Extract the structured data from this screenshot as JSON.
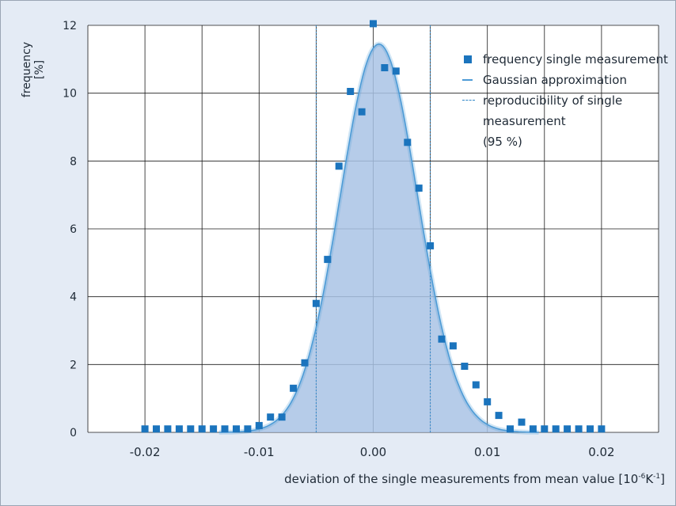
{
  "chart_data": {
    "type": "scatter",
    "xlabel_main": "deviation of the single measurements from mean value [10",
    "xlabel_exp1": "-6",
    "xlabel_unit": "K",
    "xlabel_exp2": "-1",
    "xlabel_end": "]",
    "ylabel": "frequency [%]",
    "xlim": [
      -0.025,
      0.025
    ],
    "ylim": [
      0,
      12
    ],
    "xticks": [
      -0.02,
      -0.01,
      0.0,
      0.01,
      0.02
    ],
    "xtick_labels": [
      "-0.02",
      "-0.01",
      "0.00",
      "0.01",
      "0.02"
    ],
    "yticks": [
      0,
      2,
      4,
      6,
      8,
      10,
      12
    ],
    "ytick_labels": [
      "0",
      "2",
      "4",
      "6",
      "8",
      "10",
      "12"
    ],
    "grid": true,
    "legend_position": "top-right",
    "colors": {
      "marker": "#1b74bd",
      "fill": "#a9c3e5",
      "curve": "#4d9bd6",
      "dashed": "#2f86c7",
      "grid": "#1a1a1a"
    },
    "series": [
      {
        "name": "frequency single measurement",
        "kind": "scatter",
        "x": [
          -0.02,
          -0.019,
          -0.018,
          -0.017,
          -0.016,
          -0.015,
          -0.014,
          -0.013,
          -0.012,
          -0.011,
          -0.01,
          -0.009,
          -0.008,
          -0.007,
          -0.006,
          -0.005,
          -0.004,
          -0.003,
          -0.002,
          -0.001,
          0.0,
          0.001,
          0.002,
          0.003,
          0.004,
          0.005,
          0.006,
          0.007,
          0.008,
          0.009,
          0.01,
          0.011,
          0.012,
          0.013,
          0.014,
          0.015,
          0.016,
          0.017,
          0.018,
          0.019,
          0.02
        ],
        "y": [
          0.1,
          0.1,
          0.1,
          0.1,
          0.1,
          0.1,
          0.1,
          0.1,
          0.1,
          0.1,
          0.2,
          0.45,
          0.45,
          1.3,
          2.05,
          3.8,
          5.1,
          7.85,
          10.05,
          9.45,
          12.05,
          10.75,
          10.65,
          8.55,
          7.2,
          5.5,
          2.75,
          2.55,
          1.95,
          1.4,
          0.9,
          0.5,
          0.1,
          0.3,
          0.1,
          0.1,
          0.1,
          0.1,
          0.1,
          0.1,
          0.1
        ]
      },
      {
        "name": "Gaussian approximation",
        "kind": "gaussian",
        "peak": 11.45,
        "mean": 0.0005,
        "sigma": 0.0034
      },
      {
        "name": "reproducibility of single measurement (95 %)",
        "kind": "vlines",
        "x": [
          -0.005,
          0.005
        ]
      }
    ],
    "legend": [
      "frequency single measurement",
      "Gaussian approximation",
      "reproducibility of single",
      "measurement",
      "(95 %)"
    ]
  }
}
